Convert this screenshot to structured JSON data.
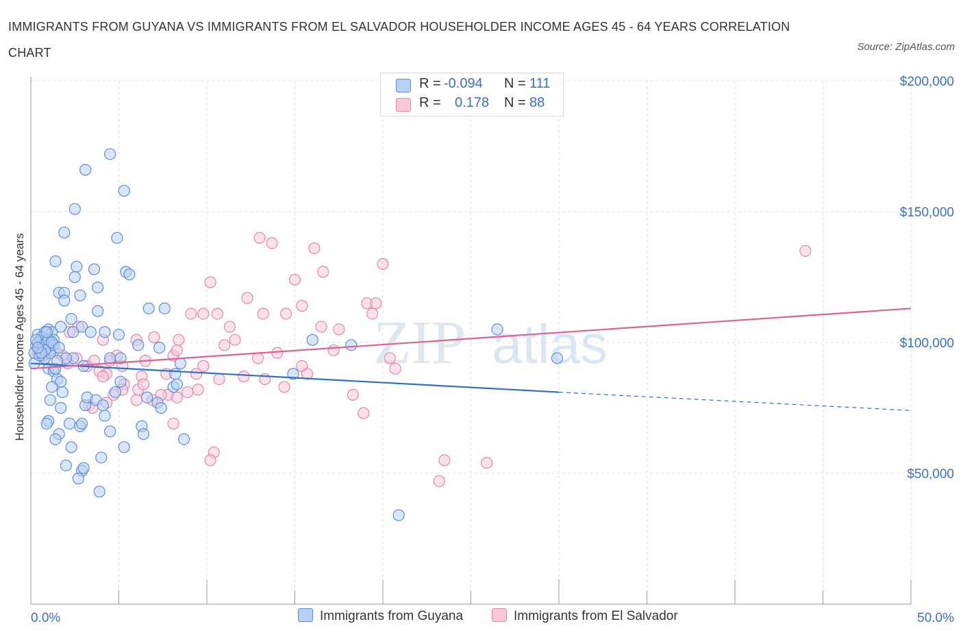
{
  "title": "IMMIGRANTS FROM GUYANA VS IMMIGRANTS FROM EL SALVADOR HOUSEHOLDER INCOME AGES 45 - 64 YEARS CORRELATION CHART",
  "source": "Source: ZipAtlas.com",
  "watermark": {
    "zip": "ZIP",
    "atlas": "atlas"
  },
  "colors": {
    "guyana_fill": "#b8d0f5",
    "guyana_stroke": "#5b8fd6",
    "guyana_line": "#2e6fcc",
    "elsalvador_fill": "#f8c8d8",
    "elsalvador_stroke": "#e486a8",
    "elsalvador_line": "#e06090",
    "axis_label": "#3a6fc8",
    "grid": "#e0e0e0"
  },
  "legend": {
    "position": "top-center",
    "rows": [
      {
        "r_label": "R =",
        "r_value": "-0.094",
        "n_label": "N =",
        "n_value": "111",
        "series": "guyana"
      },
      {
        "r_label": "R =",
        "r_value": "0.178",
        "n_label": "N =",
        "n_value": "88",
        "series": "elsalvador"
      }
    ]
  },
  "bottom_legend": [
    "Immigrants from Guyana",
    "Immigrants from El Salvador"
  ],
  "chart_data": {
    "type": "scatter",
    "title": "IMMIGRANTS FROM GUYANA VS IMMIGRANTS FROM EL SALVADOR HOUSEHOLDER INCOME AGES 45 - 64 YEARS CORRELATION CHART",
    "xlabel": "",
    "ylabel": "Householder Income Ages 45 - 64 years",
    "xlim": [
      0,
      50
    ],
    "ylim": [
      0,
      200000
    ],
    "x_ticks": [
      "0.0%",
      "50.0%"
    ],
    "y_ticks": [
      {
        "value": 50000,
        "label": "$50,000"
      },
      {
        "value": 100000,
        "label": "$100,000"
      },
      {
        "value": 150000,
        "label": "$150,000"
      },
      {
        "value": 200000,
        "label": "$200,000"
      }
    ],
    "grid": true,
    "series": [
      {
        "name": "Immigrants from Guyana",
        "trend": {
          "x": [
            0,
            30
          ],
          "y": [
            92000,
            81000
          ],
          "dashed_to": [
            50,
            74000
          ]
        },
        "points": [
          [
            4.5,
            172000
          ],
          [
            3.1,
            166000
          ],
          [
            5.3,
            158000
          ],
          [
            2.5,
            151000
          ],
          [
            4.9,
            140000
          ],
          [
            1.9,
            142000
          ],
          [
            1.4,
            131000
          ],
          [
            2.6,
            129000
          ],
          [
            3.6,
            128000
          ],
          [
            5.4,
            127000
          ],
          [
            5.6,
            126000
          ],
          [
            2.5,
            125000
          ],
          [
            3.8,
            121000
          ],
          [
            1.6,
            119000
          ],
          [
            1.9,
            119000
          ],
          [
            2.8,
            118000
          ],
          [
            1.9,
            116000
          ],
          [
            3.8,
            112000
          ],
          [
            6.7,
            113000
          ],
          [
            7.6,
            113000
          ],
          [
            1.0,
            105000
          ],
          [
            1.2,
            104000
          ],
          [
            2.3,
            109000
          ],
          [
            2.4,
            104000
          ],
          [
            0.4,
            103000
          ],
          [
            0.6,
            101000
          ],
          [
            0.8,
            104000
          ],
          [
            0.9,
            100000
          ],
          [
            1.1,
            97000
          ],
          [
            0.3,
            99000
          ],
          [
            0.5,
            97000
          ],
          [
            1.3,
            101000
          ],
          [
            1.7,
            106000
          ],
          [
            2.9,
            106000
          ],
          [
            3.4,
            104000
          ],
          [
            4.2,
            104000
          ],
          [
            5.0,
            103000
          ],
          [
            6.1,
            99000
          ],
          [
            7.3,
            98000
          ],
          [
            0.7,
            95000
          ],
          [
            1.0,
            90000
          ],
          [
            1.3,
            89000
          ],
          [
            1.5,
            86000
          ],
          [
            1.7,
            85000
          ],
          [
            1.2,
            83000
          ],
          [
            1.8,
            81000
          ],
          [
            2.4,
            94000
          ],
          [
            3.0,
            91000
          ],
          [
            4.5,
            94000
          ],
          [
            5.1,
            94000
          ],
          [
            8.5,
            92000
          ],
          [
            8.2,
            88000
          ],
          [
            14.9,
            88000
          ],
          [
            16.0,
            101000
          ],
          [
            18.2,
            99000
          ],
          [
            26.5,
            105000
          ],
          [
            29.9,
            94000
          ],
          [
            1.1,
            78000
          ],
          [
            1.7,
            75000
          ],
          [
            1.0,
            70000
          ],
          [
            0.9,
            69000
          ],
          [
            2.2,
            69000
          ],
          [
            3.1,
            76000
          ],
          [
            3.2,
            79000
          ],
          [
            3.7,
            78000
          ],
          [
            4.1,
            76000
          ],
          [
            4.2,
            72000
          ],
          [
            5.1,
            85000
          ],
          [
            4.8,
            81000
          ],
          [
            6.6,
            79000
          ],
          [
            7.2,
            77000
          ],
          [
            7.4,
            75000
          ],
          [
            8.1,
            83000
          ],
          [
            8.3,
            84000
          ],
          [
            2.8,
            68000
          ],
          [
            2.9,
            69000
          ],
          [
            1.6,
            65000
          ],
          [
            1.4,
            63000
          ],
          [
            4.5,
            66000
          ],
          [
            6.3,
            68000
          ],
          [
            6.4,
            65000
          ],
          [
            5.3,
            60000
          ],
          [
            2.3,
            60000
          ],
          [
            4.0,
            56000
          ],
          [
            8.7,
            63000
          ],
          [
            2.0,
            53000
          ],
          [
            2.9,
            51000
          ],
          [
            3.0,
            52000
          ],
          [
            2.7,
            48000
          ],
          [
            3.9,
            43000
          ],
          [
            20.9,
            34000
          ],
          [
            0.2,
            92000
          ],
          [
            0.8,
            94000
          ],
          [
            1.4,
            90000
          ],
          [
            2.0,
            94000
          ],
          [
            0.6,
            102000
          ],
          [
            0.9,
            98000
          ],
          [
            0.2,
            96000
          ],
          [
            1.1,
            96000
          ],
          [
            1.5,
            93000
          ],
          [
            0.4,
            100000
          ],
          [
            0.7,
            99000
          ],
          [
            1.0,
            101000
          ],
          [
            1.3,
            99000
          ],
          [
            0.5,
            95000
          ],
          [
            0.8,
            97000
          ],
          [
            0.3,
            101000
          ],
          [
            0.6,
            96000
          ],
          [
            1.2,
            100000
          ],
          [
            0.9,
            104000
          ],
          [
            0.4,
            98000
          ],
          [
            1.6,
            98000
          ]
        ]
      },
      {
        "name": "Immigrants from El Salvador",
        "trend": {
          "x": [
            0,
            50
          ],
          "y": [
            90000,
            113000
          ]
        },
        "points": [
          [
            13.0,
            140000
          ],
          [
            13.7,
            138000
          ],
          [
            16.1,
            136000
          ],
          [
            20.0,
            130000
          ],
          [
            44.0,
            135000
          ],
          [
            16.6,
            127000
          ],
          [
            15.0,
            124000
          ],
          [
            10.2,
            123000
          ],
          [
            12.3,
            117000
          ],
          [
            15.4,
            114000
          ],
          [
            19.1,
            115000
          ],
          [
            19.6,
            115000
          ],
          [
            9.1,
            111000
          ],
          [
            9.8,
            111000
          ],
          [
            10.6,
            111000
          ],
          [
            13.2,
            111000
          ],
          [
            14.5,
            111000
          ],
          [
            16.5,
            106000
          ],
          [
            17.5,
            105000
          ],
          [
            19.4,
            111000
          ],
          [
            11.3,
            106000
          ],
          [
            11.6,
            101000
          ],
          [
            11.0,
            99000
          ],
          [
            7.0,
            102000
          ],
          [
            8.4,
            101000
          ],
          [
            6.0,
            101000
          ],
          [
            4.1,
            101000
          ],
          [
            2.7,
            106000
          ],
          [
            2.2,
            104000
          ],
          [
            0.9,
            99000
          ],
          [
            1.5,
            96000
          ],
          [
            0.6,
            97000
          ],
          [
            1.1,
            100000
          ],
          [
            1.8,
            95000
          ],
          [
            2.6,
            94000
          ],
          [
            3.6,
            93000
          ],
          [
            4.5,
            93000
          ],
          [
            4.9,
            95000
          ],
          [
            3.2,
            91000
          ],
          [
            5.2,
            91000
          ],
          [
            6.5,
            93000
          ],
          [
            8.1,
            95000
          ],
          [
            8.3,
            97000
          ],
          [
            9.8,
            91000
          ],
          [
            12.9,
            94000
          ],
          [
            14.0,
            96000
          ],
          [
            15.4,
            91000
          ],
          [
            17.2,
            97000
          ],
          [
            20.4,
            94000
          ],
          [
            20.7,
            90000
          ],
          [
            3.9,
            89000
          ],
          [
            4.3,
            88000
          ],
          [
            4.1,
            87000
          ],
          [
            6.3,
            87000
          ],
          [
            7.7,
            88000
          ],
          [
            9.4,
            88000
          ],
          [
            10.7,
            86000
          ],
          [
            12.1,
            87000
          ],
          [
            13.3,
            86000
          ],
          [
            14.4,
            83000
          ],
          [
            15.7,
            88000
          ],
          [
            5.3,
            84000
          ],
          [
            5.2,
            82000
          ],
          [
            6.1,
            82000
          ],
          [
            6.4,
            84000
          ],
          [
            8.9,
            81000
          ],
          [
            9.5,
            82000
          ],
          [
            7.8,
            80000
          ],
          [
            7.4,
            80000
          ],
          [
            6.9,
            78000
          ],
          [
            6.0,
            78000
          ],
          [
            4.7,
            80000
          ],
          [
            3.3,
            76000
          ],
          [
            3.5,
            75000
          ],
          [
            4.3,
            77000
          ],
          [
            8.3,
            79000
          ],
          [
            18.3,
            80000
          ],
          [
            18.9,
            73000
          ],
          [
            8.1,
            69000
          ],
          [
            10.4,
            58000
          ],
          [
            10.2,
            55000
          ],
          [
            23.5,
            55000
          ],
          [
            25.9,
            54000
          ],
          [
            23.2,
            47000
          ],
          [
            0.4,
            96000
          ],
          [
            0.8,
            94000
          ],
          [
            1.3,
            90000
          ],
          [
            2.1,
            92000
          ]
        ]
      }
    ]
  }
}
